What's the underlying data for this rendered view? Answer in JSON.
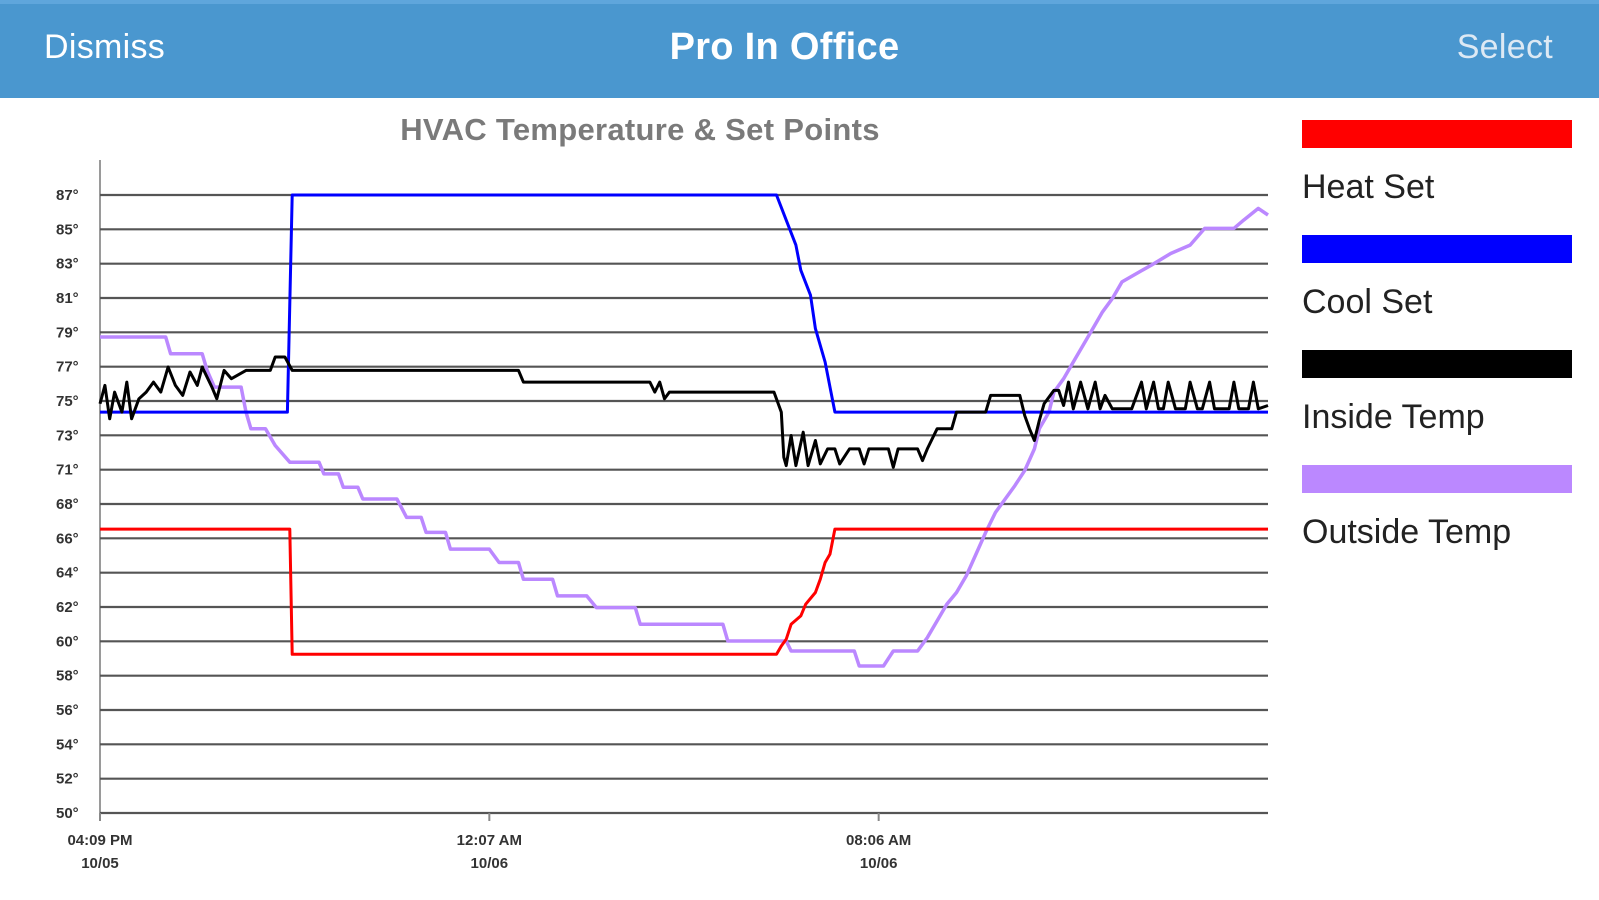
{
  "navbar": {
    "left_label": "Dismiss",
    "title": "Pro In Office",
    "right_label": "Select"
  },
  "chart_data": {
    "type": "line",
    "title": "HVAC Temperature & Set Points",
    "xlabel": "",
    "ylabel": "",
    "ylim": [
      50,
      88
    ],
    "y_tick_labels": [
      "87°",
      "85°",
      "83°",
      "81°",
      "79°",
      "77°",
      "75°",
      "73°",
      "71°",
      "68°",
      "66°",
      "64°",
      "62°",
      "60°",
      "58°",
      "56°",
      "54°",
      "52°",
      "50°"
    ],
    "x_range": [
      0,
      24
    ],
    "x_unit": "hours since 04:09 PM 10/05",
    "x_ticks": [
      {
        "time": "04:09 PM",
        "date": "10/05",
        "x": 0
      },
      {
        "time": "12:07 AM",
        "date": "10/06",
        "x": 8
      },
      {
        "time": "08:06 AM",
        "date": "10/06",
        "x": 16
      }
    ],
    "grid": true,
    "legend_position": "right",
    "series": [
      {
        "name": "Heat Set",
        "color": "#ff0000",
        "points": [
          [
            0,
            67
          ],
          [
            3.9,
            67
          ],
          [
            3.95,
            59.5
          ],
          [
            13.9,
            59.5
          ],
          [
            14.0,
            60
          ],
          [
            14.1,
            60.4
          ],
          [
            14.2,
            61.3
          ],
          [
            14.4,
            61.8
          ],
          [
            14.5,
            62.5
          ],
          [
            14.7,
            63.2
          ],
          [
            14.8,
            64
          ],
          [
            14.9,
            65
          ],
          [
            15.0,
            65.5
          ],
          [
            15.1,
            67
          ],
          [
            24,
            67
          ]
        ]
      },
      {
        "name": "Cool Set",
        "color": "#0000ff",
        "points": [
          [
            0,
            74
          ],
          [
            3.85,
            74
          ],
          [
            3.95,
            87
          ],
          [
            13.9,
            87
          ],
          [
            14.1,
            85.5
          ],
          [
            14.3,
            84
          ],
          [
            14.4,
            82.5
          ],
          [
            14.6,
            81
          ],
          [
            14.7,
            79
          ],
          [
            14.9,
            77
          ],
          [
            15.0,
            75.5
          ],
          [
            15.1,
            74
          ],
          [
            24,
            74
          ]
        ]
      },
      {
        "name": "Inside Temp",
        "color": "#000000",
        "points": [
          [
            0,
            74.5
          ],
          [
            0.1,
            75.6
          ],
          [
            0.2,
            73.6
          ],
          [
            0.3,
            75.2
          ],
          [
            0.45,
            74
          ],
          [
            0.55,
            75.8
          ],
          [
            0.65,
            73.6
          ],
          [
            0.8,
            74.8
          ],
          [
            0.95,
            75.2
          ],
          [
            1.1,
            75.8
          ],
          [
            1.25,
            75.2
          ],
          [
            1.4,
            76.7
          ],
          [
            1.55,
            75.6
          ],
          [
            1.7,
            75
          ],
          [
            1.85,
            76.4
          ],
          [
            2.0,
            75.6
          ],
          [
            2.1,
            76.7
          ],
          [
            2.3,
            75.5
          ],
          [
            2.4,
            74.8
          ],
          [
            2.55,
            76.5
          ],
          [
            2.7,
            76
          ],
          [
            3.0,
            76.5
          ],
          [
            3.5,
            76.5
          ],
          [
            3.6,
            77.3
          ],
          [
            3.8,
            77.3
          ],
          [
            3.95,
            76.5
          ],
          [
            8.6,
            76.5
          ],
          [
            8.7,
            75.8
          ],
          [
            11.3,
            75.8
          ],
          [
            11.4,
            75.2
          ],
          [
            11.5,
            75.8
          ],
          [
            11.6,
            74.8
          ],
          [
            11.7,
            75.2
          ],
          [
            13.85,
            75.2
          ],
          [
            14.0,
            74
          ],
          [
            14.05,
            71.3
          ],
          [
            14.1,
            70.8
          ],
          [
            14.2,
            72.6
          ],
          [
            14.3,
            70.8
          ],
          [
            14.45,
            72.8
          ],
          [
            14.55,
            70.8
          ],
          [
            14.7,
            72.3
          ],
          [
            14.8,
            70.9
          ],
          [
            14.95,
            71.8
          ],
          [
            15.1,
            71.8
          ],
          [
            15.2,
            70.9
          ],
          [
            15.4,
            71.8
          ],
          [
            15.6,
            71.8
          ],
          [
            15.7,
            70.9
          ],
          [
            15.8,
            71.8
          ],
          [
            16.2,
            71.8
          ],
          [
            16.3,
            70.7
          ],
          [
            16.4,
            71.8
          ],
          [
            16.8,
            71.8
          ],
          [
            16.9,
            71.1
          ],
          [
            17.0,
            71.8
          ],
          [
            17.2,
            73
          ],
          [
            17.5,
            73
          ],
          [
            17.6,
            74
          ],
          [
            18.2,
            74
          ],
          [
            18.3,
            75
          ],
          [
            18.9,
            75
          ],
          [
            19.0,
            73.8
          ],
          [
            19.1,
            73
          ],
          [
            19.2,
            72.3
          ],
          [
            19.3,
            73.5
          ],
          [
            19.4,
            74.5
          ],
          [
            19.6,
            75.3
          ],
          [
            19.7,
            75.3
          ],
          [
            19.8,
            74.4
          ],
          [
            19.9,
            75.8
          ],
          [
            20.0,
            74.2
          ],
          [
            20.15,
            75.8
          ],
          [
            20.3,
            74.2
          ],
          [
            20.45,
            75.8
          ],
          [
            20.55,
            74.2
          ],
          [
            20.65,
            75
          ],
          [
            20.8,
            74.2
          ],
          [
            21.2,
            74.2
          ],
          [
            21.4,
            75.8
          ],
          [
            21.5,
            74.2
          ],
          [
            21.65,
            75.8
          ],
          [
            21.75,
            74.2
          ],
          [
            21.85,
            74.2
          ],
          [
            21.95,
            75.8
          ],
          [
            22.1,
            74.2
          ],
          [
            22.3,
            74.2
          ],
          [
            22.4,
            75.8
          ],
          [
            22.55,
            74.2
          ],
          [
            22.65,
            74.2
          ],
          [
            22.8,
            75.8
          ],
          [
            22.9,
            74.2
          ],
          [
            23.2,
            74.2
          ],
          [
            23.3,
            75.8
          ],
          [
            23.4,
            74.2
          ],
          [
            23.6,
            74.2
          ],
          [
            23.7,
            75.8
          ],
          [
            23.8,
            74.2
          ],
          [
            24,
            74.4
          ]
        ]
      },
      {
        "name": "Outside Temp",
        "color": "#bb88ff",
        "points": [
          [
            0,
            78.5
          ],
          [
            1.35,
            78.5
          ],
          [
            1.45,
            77.5
          ],
          [
            2.1,
            77.5
          ],
          [
            2.2,
            76.5
          ],
          [
            2.35,
            75.5
          ],
          [
            2.9,
            75.5
          ],
          [
            3.0,
            74
          ],
          [
            3.1,
            73
          ],
          [
            3.4,
            73
          ],
          [
            3.6,
            72
          ],
          [
            3.9,
            71
          ],
          [
            4.5,
            71
          ],
          [
            4.6,
            70.3
          ],
          [
            4.9,
            70.3
          ],
          [
            5.0,
            69.5
          ],
          [
            5.3,
            69.5
          ],
          [
            5.4,
            68.8
          ],
          [
            6.1,
            68.8
          ],
          [
            6.3,
            67.7
          ],
          [
            6.6,
            67.7
          ],
          [
            6.7,
            66.8
          ],
          [
            7.1,
            66.8
          ],
          [
            7.2,
            65.8
          ],
          [
            8.0,
            65.8
          ],
          [
            8.2,
            65
          ],
          [
            8.6,
            65
          ],
          [
            8.7,
            64
          ],
          [
            9.3,
            64
          ],
          [
            9.4,
            63
          ],
          [
            10.0,
            63
          ],
          [
            10.2,
            62.3
          ],
          [
            11.0,
            62.3
          ],
          [
            11.1,
            61.3
          ],
          [
            12.8,
            61.3
          ],
          [
            12.9,
            60.3
          ],
          [
            14.1,
            60.3
          ],
          [
            14.2,
            59.7
          ],
          [
            15.5,
            59.7
          ],
          [
            15.6,
            58.8
          ],
          [
            16.1,
            58.8
          ],
          [
            16.3,
            59.7
          ],
          [
            16.8,
            59.7
          ],
          [
            17.0,
            60.5
          ],
          [
            17.2,
            61.5
          ],
          [
            17.4,
            62.5
          ],
          [
            17.6,
            63.2
          ],
          [
            17.8,
            64.2
          ],
          [
            18.0,
            65.5
          ],
          [
            18.2,
            66.8
          ],
          [
            18.4,
            68
          ],
          [
            18.6,
            68.8
          ],
          [
            18.8,
            69.6
          ],
          [
            19.0,
            70.5
          ],
          [
            19.2,
            71.8
          ],
          [
            19.3,
            73
          ],
          [
            19.5,
            74
          ],
          [
            19.6,
            75.2
          ],
          [
            19.8,
            76
          ],
          [
            20.0,
            77
          ],
          [
            20.2,
            78
          ],
          [
            20.4,
            79
          ],
          [
            20.6,
            80
          ],
          [
            20.8,
            80.8
          ],
          [
            21.0,
            81.8
          ],
          [
            21.3,
            82.3
          ],
          [
            21.6,
            82.8
          ],
          [
            22.0,
            83.5
          ],
          [
            22.4,
            84
          ],
          [
            22.7,
            85
          ],
          [
            23.3,
            85
          ],
          [
            23.5,
            85.5
          ],
          [
            23.8,
            86.2
          ],
          [
            24,
            85.8
          ]
        ]
      }
    ]
  },
  "legend": {
    "items": [
      {
        "label": "Heat Set",
        "color": "#ff0000"
      },
      {
        "label": "Cool Set",
        "color": "#0000ff"
      },
      {
        "label": "Inside Temp",
        "color": "#000000"
      },
      {
        "label": "Outside Temp",
        "color": "#bb88ff"
      }
    ]
  }
}
